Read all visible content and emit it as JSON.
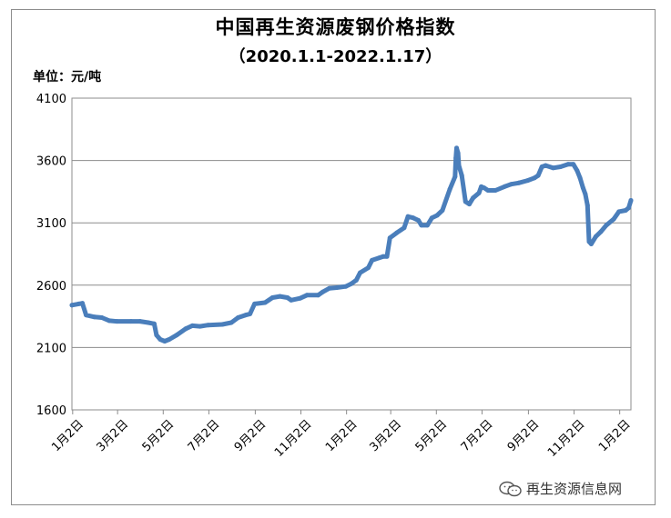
{
  "title": "中国再生资源废钢价格指数",
  "subtitle": "（2020.1.1-2022.1.17）",
  "unit_label": "单位：元/吨",
  "watermark": "再生资源信息网",
  "colors": {
    "line": "#4a7ebb",
    "grid": "#8c8c8c",
    "frame": "#8c8c8c"
  },
  "chart_data": {
    "type": "line",
    "title": "中国再生资源废钢价格指数",
    "subtitle": "（2020.1.1-2022.1.17）",
    "ylabel": "单位：元/吨",
    "ylim": [
      1600,
      4100
    ],
    "yticks": [
      1600,
      2100,
      2600,
      3100,
      3600,
      4100
    ],
    "xlim": [
      "2020-01-01",
      "2022-01-17"
    ],
    "x_tick_dates": [
      "2020-01-02",
      "2020-03-02",
      "2020-05-02",
      "2020-07-02",
      "2020-09-02",
      "2020-11-02",
      "2021-01-02",
      "2021-03-02",
      "2021-05-02",
      "2021-07-02",
      "2021-09-02",
      "2021-11-02",
      "2022-01-02"
    ],
    "x_tick_labels": [
      "1月2日",
      "3月2日",
      "5月2日",
      "7月2日",
      "9月2日",
      "11月2日",
      "1月2日",
      "3月2日",
      "5月2日",
      "7月2日",
      "9月2日",
      "11月2日",
      "1月2日"
    ],
    "grid": "horizontal",
    "legend": "none",
    "series": [
      {
        "values": [
          [
            "2020-01-01",
            2440
          ],
          [
            "2020-01-10",
            2450
          ],
          [
            "2020-01-15",
            2455
          ],
          [
            "2020-01-20",
            2360
          ],
          [
            "2020-01-31",
            2345
          ],
          [
            "2020-02-10",
            2340
          ],
          [
            "2020-02-20",
            2315
          ],
          [
            "2020-03-01",
            2310
          ],
          [
            "2020-03-20",
            2310
          ],
          [
            "2020-04-01",
            2310
          ],
          [
            "2020-04-12",
            2300
          ],
          [
            "2020-04-20",
            2290
          ],
          [
            "2020-04-23",
            2200
          ],
          [
            "2020-04-28",
            2165
          ],
          [
            "2020-05-04",
            2150
          ],
          [
            "2020-05-10",
            2165
          ],
          [
            "2020-05-20",
            2200
          ],
          [
            "2020-06-01",
            2250
          ],
          [
            "2020-06-10",
            2275
          ],
          [
            "2020-06-20",
            2270
          ],
          [
            "2020-07-01",
            2280
          ],
          [
            "2020-07-20",
            2285
          ],
          [
            "2020-08-01",
            2300
          ],
          [
            "2020-08-10",
            2340
          ],
          [
            "2020-08-20",
            2360
          ],
          [
            "2020-08-26",
            2370
          ],
          [
            "2020-09-01",
            2450
          ],
          [
            "2020-09-15",
            2460
          ],
          [
            "2020-09-25",
            2500
          ],
          [
            "2020-10-05",
            2510
          ],
          [
            "2020-10-15",
            2500
          ],
          [
            "2020-10-20",
            2480
          ],
          [
            "2020-11-01",
            2495
          ],
          [
            "2020-11-10",
            2520
          ],
          [
            "2020-11-25",
            2520
          ],
          [
            "2020-12-01",
            2545
          ],
          [
            "2020-12-10",
            2575
          ],
          [
            "2020-12-20",
            2580
          ],
          [
            "2021-01-01",
            2590
          ],
          [
            "2021-01-08",
            2610
          ],
          [
            "2021-01-15",
            2640
          ],
          [
            "2021-01-20",
            2700
          ],
          [
            "2021-01-31",
            2740
          ],
          [
            "2021-02-05",
            2800
          ],
          [
            "2021-02-15",
            2820
          ],
          [
            "2021-02-20",
            2830
          ],
          [
            "2021-02-25",
            2830
          ],
          [
            "2021-03-01",
            2980
          ],
          [
            "2021-03-10",
            3020
          ],
          [
            "2021-03-20",
            3060
          ],
          [
            "2021-03-25",
            3150
          ],
          [
            "2021-04-01",
            3140
          ],
          [
            "2021-04-08",
            3120
          ],
          [
            "2021-04-12",
            3080
          ],
          [
            "2021-04-20",
            3080
          ],
          [
            "2021-04-26",
            3140
          ],
          [
            "2021-05-03",
            3160
          ],
          [
            "2021-05-10",
            3200
          ],
          [
            "2021-05-20",
            3370
          ],
          [
            "2021-05-27",
            3470
          ],
          [
            "2021-05-28",
            3620
          ],
          [
            "2021-05-29",
            3700
          ],
          [
            "2021-05-31",
            3660
          ],
          [
            "2021-06-01",
            3560
          ],
          [
            "2021-06-05",
            3480
          ],
          [
            "2021-06-10",
            3270
          ],
          [
            "2021-06-15",
            3250
          ],
          [
            "2021-06-20",
            3300
          ],
          [
            "2021-06-28",
            3340
          ],
          [
            "2021-07-01",
            3390
          ],
          [
            "2021-07-05",
            3380
          ],
          [
            "2021-07-10",
            3360
          ],
          [
            "2021-07-20",
            3360
          ],
          [
            "2021-08-01",
            3390
          ],
          [
            "2021-08-10",
            3410
          ],
          [
            "2021-08-20",
            3420
          ],
          [
            "2021-09-01",
            3440
          ],
          [
            "2021-09-10",
            3460
          ],
          [
            "2021-09-15",
            3480
          ],
          [
            "2021-09-20",
            3550
          ],
          [
            "2021-09-25",
            3560
          ],
          [
            "2021-10-05",
            3540
          ],
          [
            "2021-10-15",
            3550
          ],
          [
            "2021-10-25",
            3570
          ],
          [
            "2021-11-01",
            3570
          ],
          [
            "2021-11-06",
            3520
          ],
          [
            "2021-11-10",
            3460
          ],
          [
            "2021-11-14",
            3380
          ],
          [
            "2021-11-17",
            3330
          ],
          [
            "2021-11-20",
            3240
          ],
          [
            "2021-11-22",
            2950
          ],
          [
            "2021-11-25",
            2930
          ],
          [
            "2021-12-01",
            2990
          ],
          [
            "2021-12-08",
            3030
          ],
          [
            "2021-12-15",
            3080
          ],
          [
            "2021-12-25",
            3130
          ],
          [
            "2022-01-01",
            3190
          ],
          [
            "2022-01-10",
            3200
          ],
          [
            "2022-01-14",
            3220
          ],
          [
            "2022-01-17",
            3280
          ]
        ]
      }
    ]
  }
}
